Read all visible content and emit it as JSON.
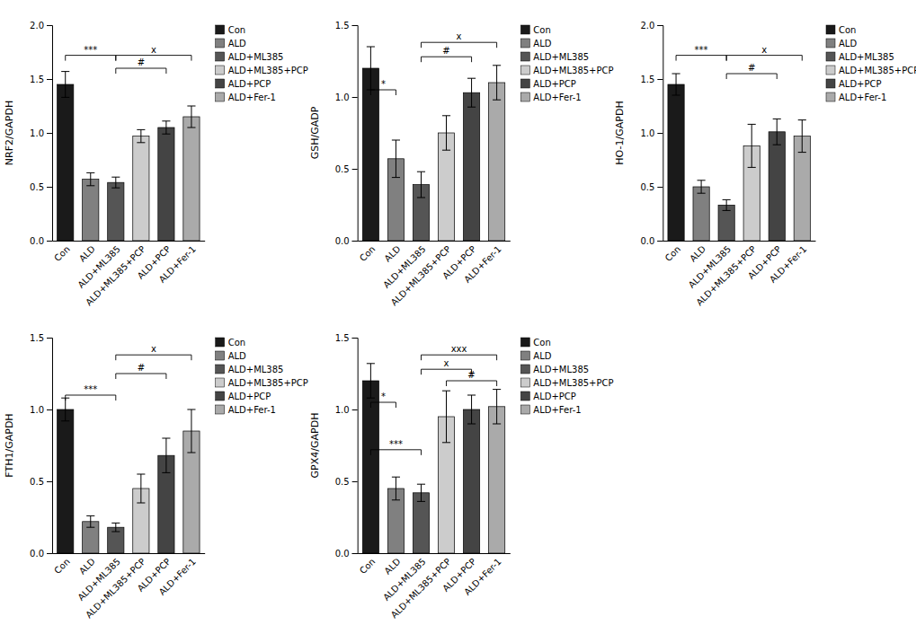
{
  "chart_data": [
    {
      "type": "bar",
      "y_label": "NRF2/GAPDH",
      "categories": [
        "Con",
        "ALD",
        "ALD+ML385",
        "ALD+ML385+PCP",
        "ALD+PCP",
        "ALD+Fer-1"
      ],
      "values": [
        1.45,
        0.57,
        0.54,
        0.97,
        1.05,
        1.15
      ],
      "errors": [
        0.12,
        0.06,
        0.05,
        0.06,
        0.06,
        0.1
      ],
      "colors": [
        "#1a1a1a",
        "#808080",
        "#555555",
        "#cccccc",
        "#444444",
        "#aaaaaa"
      ],
      "ylim": [
        0,
        2.0
      ],
      "yticks": [
        {
          "value": 0.0,
          "label": "0.0"
        },
        0.5,
        {
          "value": 1.0,
          "label": "1.0"
        },
        1.5,
        {
          "value": 2.0,
          "label": "2.0"
        }
      ],
      "legend": "upper right",
      "annotations": [
        {
          "text": "***",
          "from": "Con",
          "to": "ALD+ML385",
          "y": 1.72
        },
        {
          "text": "x",
          "from": "ALD+ML385",
          "to": "ALD+Fer-1",
          "y": 1.72
        },
        {
          "text": "#",
          "from": "ALD+ML385",
          "to": "ALD+PCP",
          "y": 1.6
        }
      ]
    },
    {
      "type": "bar",
      "y_label": "GSH/GADP",
      "categories": [
        "Con",
        "ALD",
        "ALD+ML385",
        "ALD+ML385+PCP",
        "ALD+PCP",
        "ALD+Fer-1"
      ],
      "values": [
        1.2,
        0.57,
        0.39,
        0.75,
        1.03,
        1.1
      ],
      "errors": [
        0.15,
        0.13,
        0.09,
        0.12,
        0.1,
        0.12
      ],
      "colors": [
        "#1a1a1a",
        "#808080",
        "#555555",
        "#cccccc",
        "#444444",
        "#aaaaaa"
      ],
      "ylim": [
        0,
        1.5
      ],
      "yticks": [
        {
          "value": 0.0,
          "label": "0.0"
        },
        0.5,
        {
          "value": 1.0,
          "label": "1.0"
        },
        1.5
      ],
      "legend": "upper right",
      "annotations": [
        {
          "text": "*",
          "from": "Con",
          "to": "ALD",
          "y": 1.05
        },
        {
          "text": "x",
          "from": "ALD+ML385",
          "to": "ALD+Fer-1",
          "y": 1.38
        },
        {
          "text": "#",
          "from": "ALD+ML385",
          "to": "ALD+PCP",
          "y": 1.28
        }
      ]
    },
    {
      "type": "bar",
      "y_label": "HO-1/GAPDH",
      "categories": [
        "Con",
        "ALD",
        "ALD+ML385",
        "ALD+ML385+PCP",
        "ALD+PCP",
        "ALD+Fer-1"
      ],
      "values": [
        1.45,
        0.5,
        0.33,
        0.88,
        1.01,
        0.97
      ],
      "errors": [
        0.1,
        0.06,
        0.05,
        0.2,
        0.12,
        0.15
      ],
      "colors": [
        "#1a1a1a",
        "#808080",
        "#555555",
        "#cccccc",
        "#444444",
        "#aaaaaa"
      ],
      "ylim": [
        0,
        2.0
      ],
      "yticks": [
        {
          "value": 0.0,
          "label": "0.0"
        },
        0.5,
        {
          "value": 1.0,
          "label": "1.0"
        },
        1.5,
        {
          "value": 2.0,
          "label": "2.0"
        }
      ],
      "legend": "upper right",
      "annotations": [
        {
          "text": "***",
          "from": "Con",
          "to": "ALD+ML385",
          "y": 1.72
        },
        {
          "text": "x",
          "from": "ALD+ML385",
          "to": "ALD+Fer-1",
          "y": 1.72
        },
        {
          "text": "#",
          "from": "ALD+ML385",
          "to": "ALD+PCP",
          "y": 1.55
        }
      ]
    },
    {
      "type": "bar",
      "y_label": "FTH1/GAPDH",
      "categories": [
        "Con",
        "ALD",
        "ALD+ML385",
        "ALD+ML385+PCP",
        "ALD+PCP",
        "ALD+Fer-1"
      ],
      "values": [
        1.0,
        0.22,
        0.18,
        0.45,
        0.68,
        0.85
      ],
      "errors": [
        0.08,
        0.04,
        0.03,
        0.1,
        0.12,
        0.15
      ],
      "colors": [
        "#1a1a1a",
        "#808080",
        "#555555",
        "#cccccc",
        "#444444",
        "#aaaaaa"
      ],
      "ylim": [
        0,
        1.5
      ],
      "yticks": [
        {
          "value": 0.0,
          "label": "0.0"
        },
        0.5,
        {
          "value": 1.0,
          "label": "1.0"
        },
        1.5
      ],
      "legend": "upper right",
      "annotations": [
        {
          "text": "***",
          "from": "Con",
          "to": "ALD+ML385",
          "y": 1.1
        },
        {
          "text": "x",
          "from": "ALD+ML385",
          "to": "ALD+Fer-1",
          "y": 1.38
        },
        {
          "text": "#",
          "from": "ALD+ML385",
          "to": "ALD+PCP",
          "y": 1.25
        }
      ]
    },
    {
      "type": "bar",
      "y_label": "GPX4/GAPDH",
      "categories": [
        "Con",
        "ALD",
        "ALD+ML385",
        "ALD+ML385+PCP",
        "ALD+PCP",
        "ALD+Fer-1"
      ],
      "values": [
        1.2,
        0.45,
        0.42,
        0.95,
        1.0,
        1.02
      ],
      "errors": [
        0.12,
        0.08,
        0.06,
        0.18,
        0.1,
        0.12
      ],
      "colors": [
        "#1a1a1a",
        "#808080",
        "#555555",
        "#cccccc",
        "#444444",
        "#aaaaaa"
      ],
      "ylim": [
        0,
        1.5
      ],
      "yticks": [
        {
          "value": 0.0,
          "label": "0.0"
        },
        0.5,
        {
          "value": 1.0,
          "label": "1.0"
        },
        1.5
      ],
      "legend": "upper right",
      "annotations": [
        {
          "text": "***",
          "from": "Con",
          "to": "ALD+ML385",
          "y": 0.72
        },
        {
          "text": "*",
          "from": "Con",
          "to": "ALD",
          "y": 1.05
        },
        {
          "text": "x",
          "from": "ALD+ML385",
          "to": "ALD+PCP",
          "y": 1.28
        },
        {
          "text": "xxx",
          "from": "ALD+ML385",
          "to": "ALD+Fer-1",
          "y": 1.38
        },
        {
          "text": "#",
          "from": "ALD+ML385+PCP",
          "to": "ALD+Fer-1",
          "y": 1.2
        }
      ]
    }
  ]
}
